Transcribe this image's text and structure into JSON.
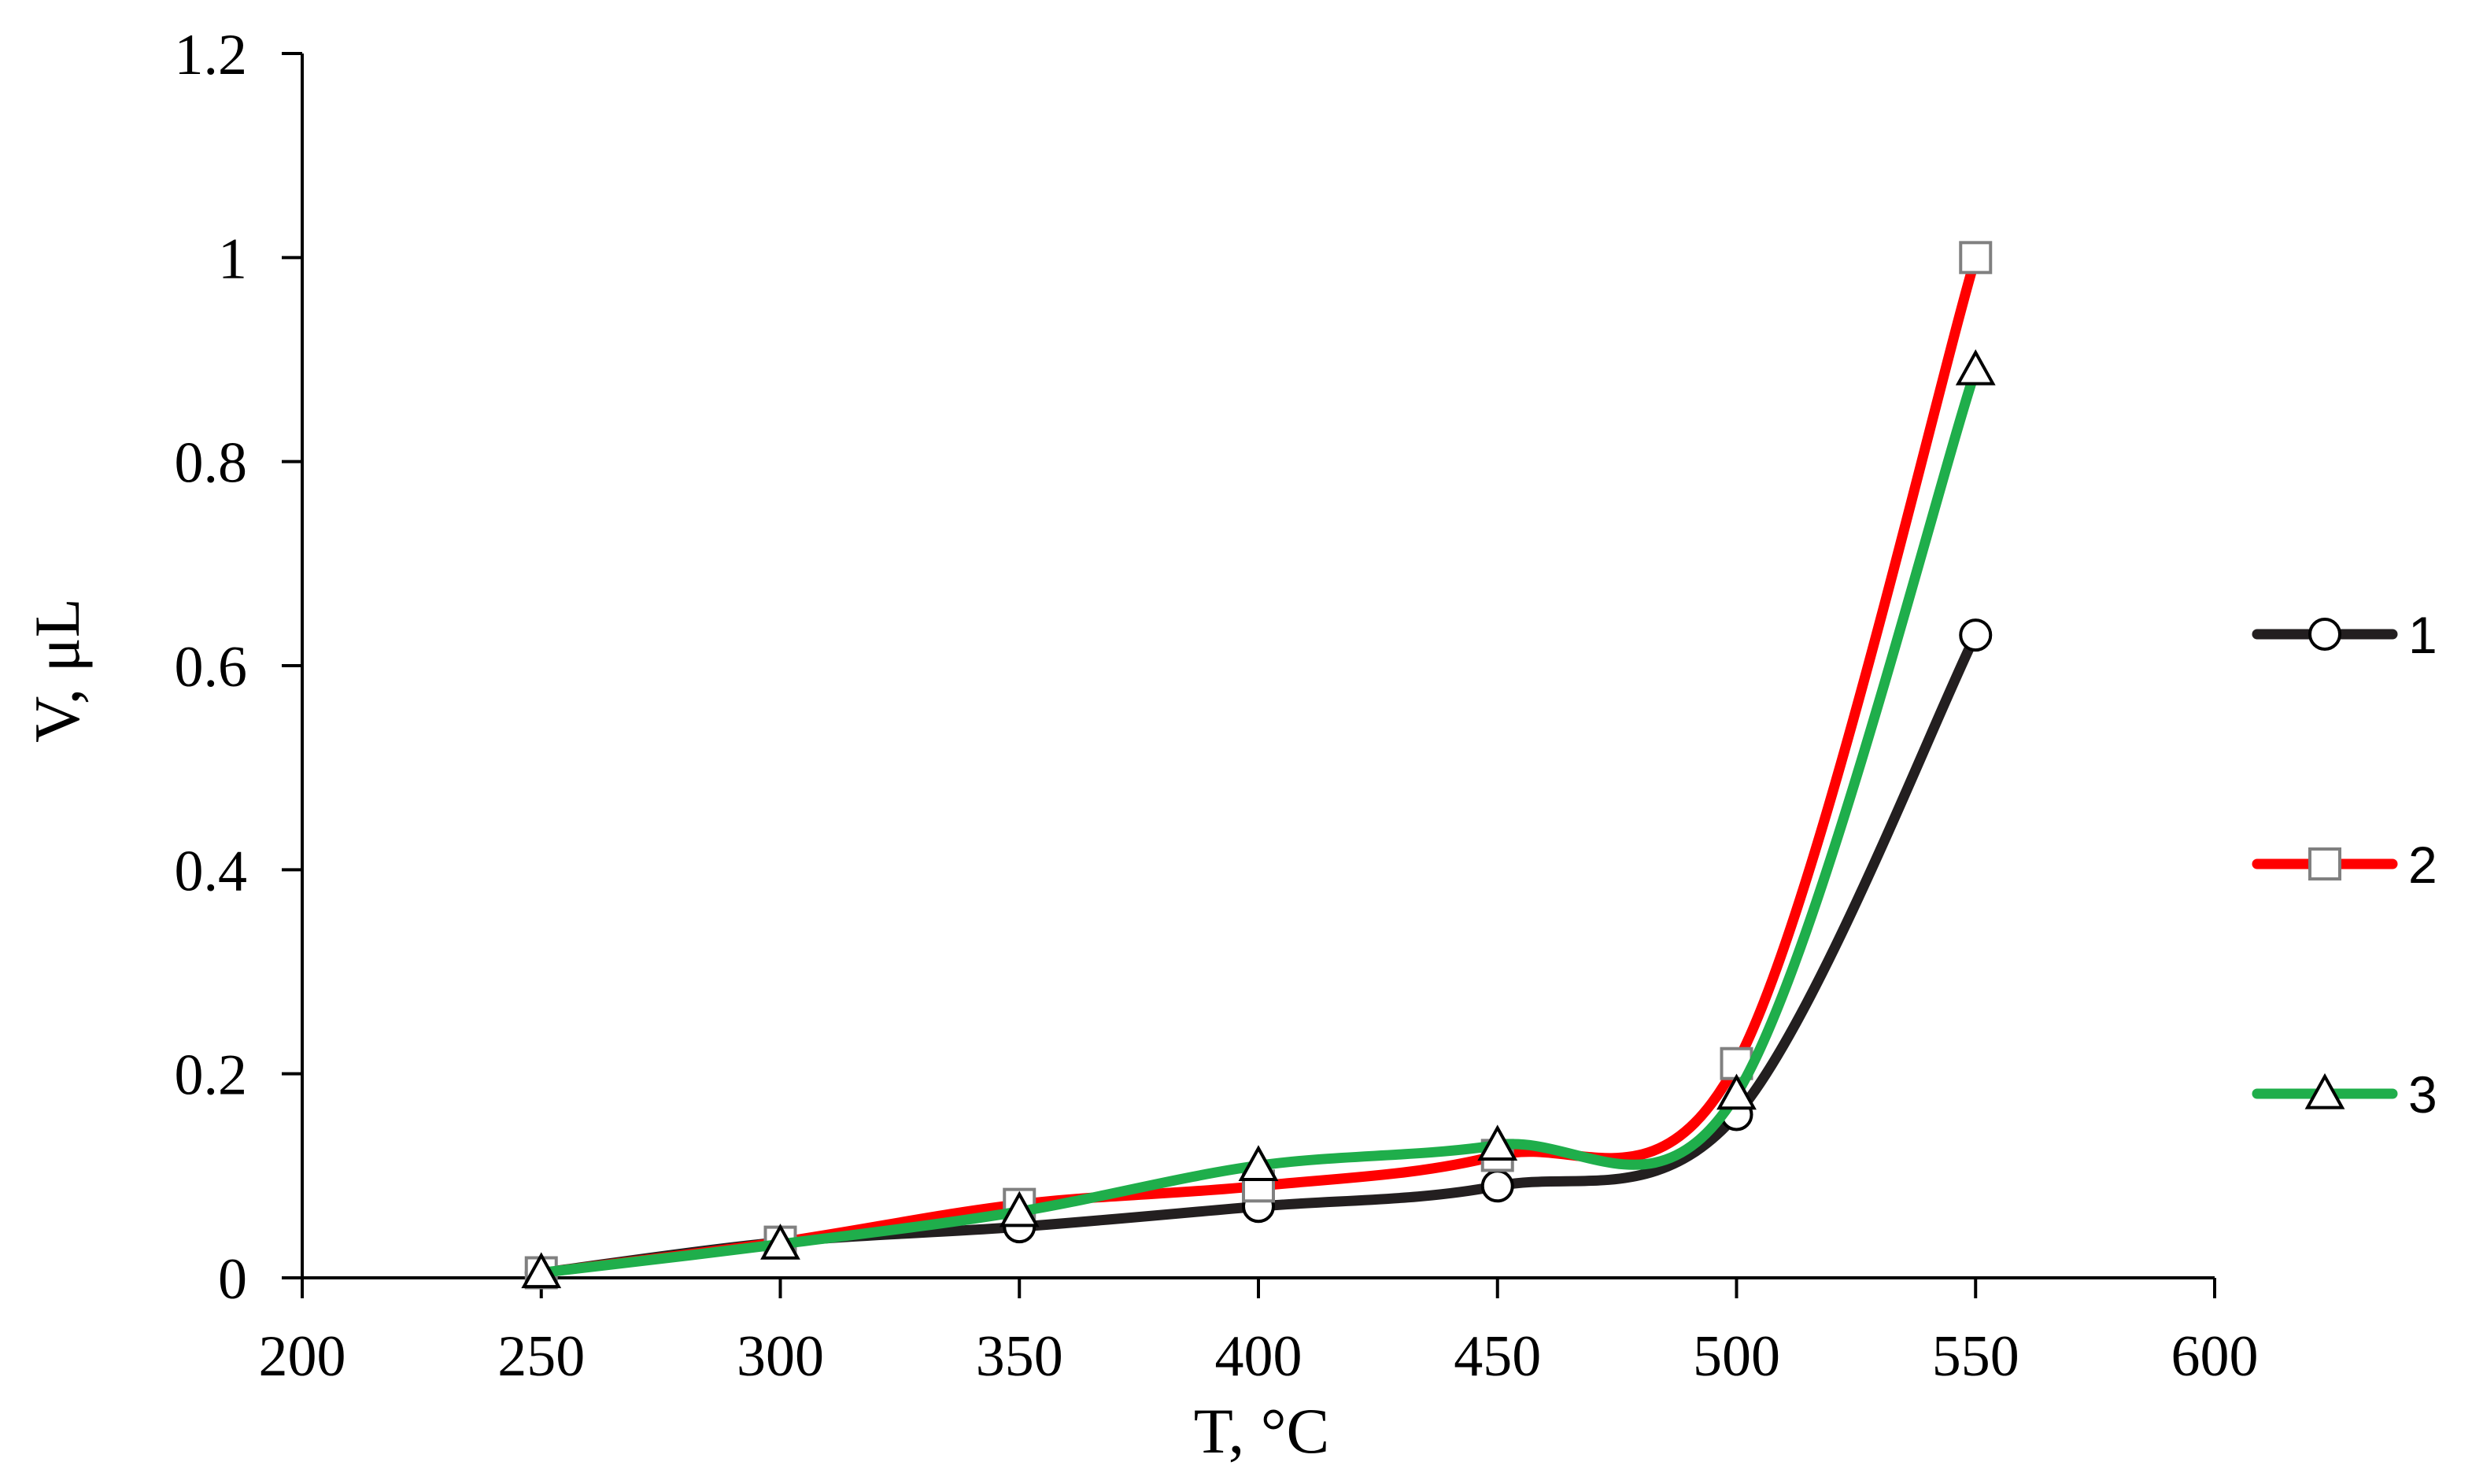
{
  "chart_data": {
    "type": "line",
    "title": "",
    "xlabel": "T, °C",
    "ylabel": "V, μL",
    "xlim": [
      200,
      600
    ],
    "ylim": [
      0,
      1.2
    ],
    "x_ticks": [
      200,
      250,
      300,
      350,
      400,
      450,
      500,
      550,
      600
    ],
    "y_ticks": [
      0,
      0.2,
      0.4,
      0.6,
      0.8,
      1,
      1.2
    ],
    "y_tick_labels": [
      "0",
      "0.2",
      "0.4",
      "0.6",
      "0.8",
      "1",
      "1.2"
    ],
    "x": [
      250,
      300,
      350,
      400,
      450,
      500,
      550
    ],
    "grid": false,
    "legend_position": "right",
    "series": [
      {
        "name": "1",
        "values": [
          0.005,
          0.035,
          0.05,
          0.07,
          0.09,
          0.16,
          0.63
        ],
        "color": "#231f20",
        "marker": "circle"
      },
      {
        "name": "2",
        "values": [
          0.005,
          0.035,
          0.072,
          0.09,
          0.12,
          0.21,
          1.0
        ],
        "color": "#ff0000",
        "marker": "square"
      },
      {
        "name": "3",
        "values": [
          0.005,
          0.033,
          0.065,
          0.11,
          0.13,
          0.18,
          0.89
        ],
        "color": "#1fae4b",
        "marker": "triangle"
      }
    ]
  }
}
